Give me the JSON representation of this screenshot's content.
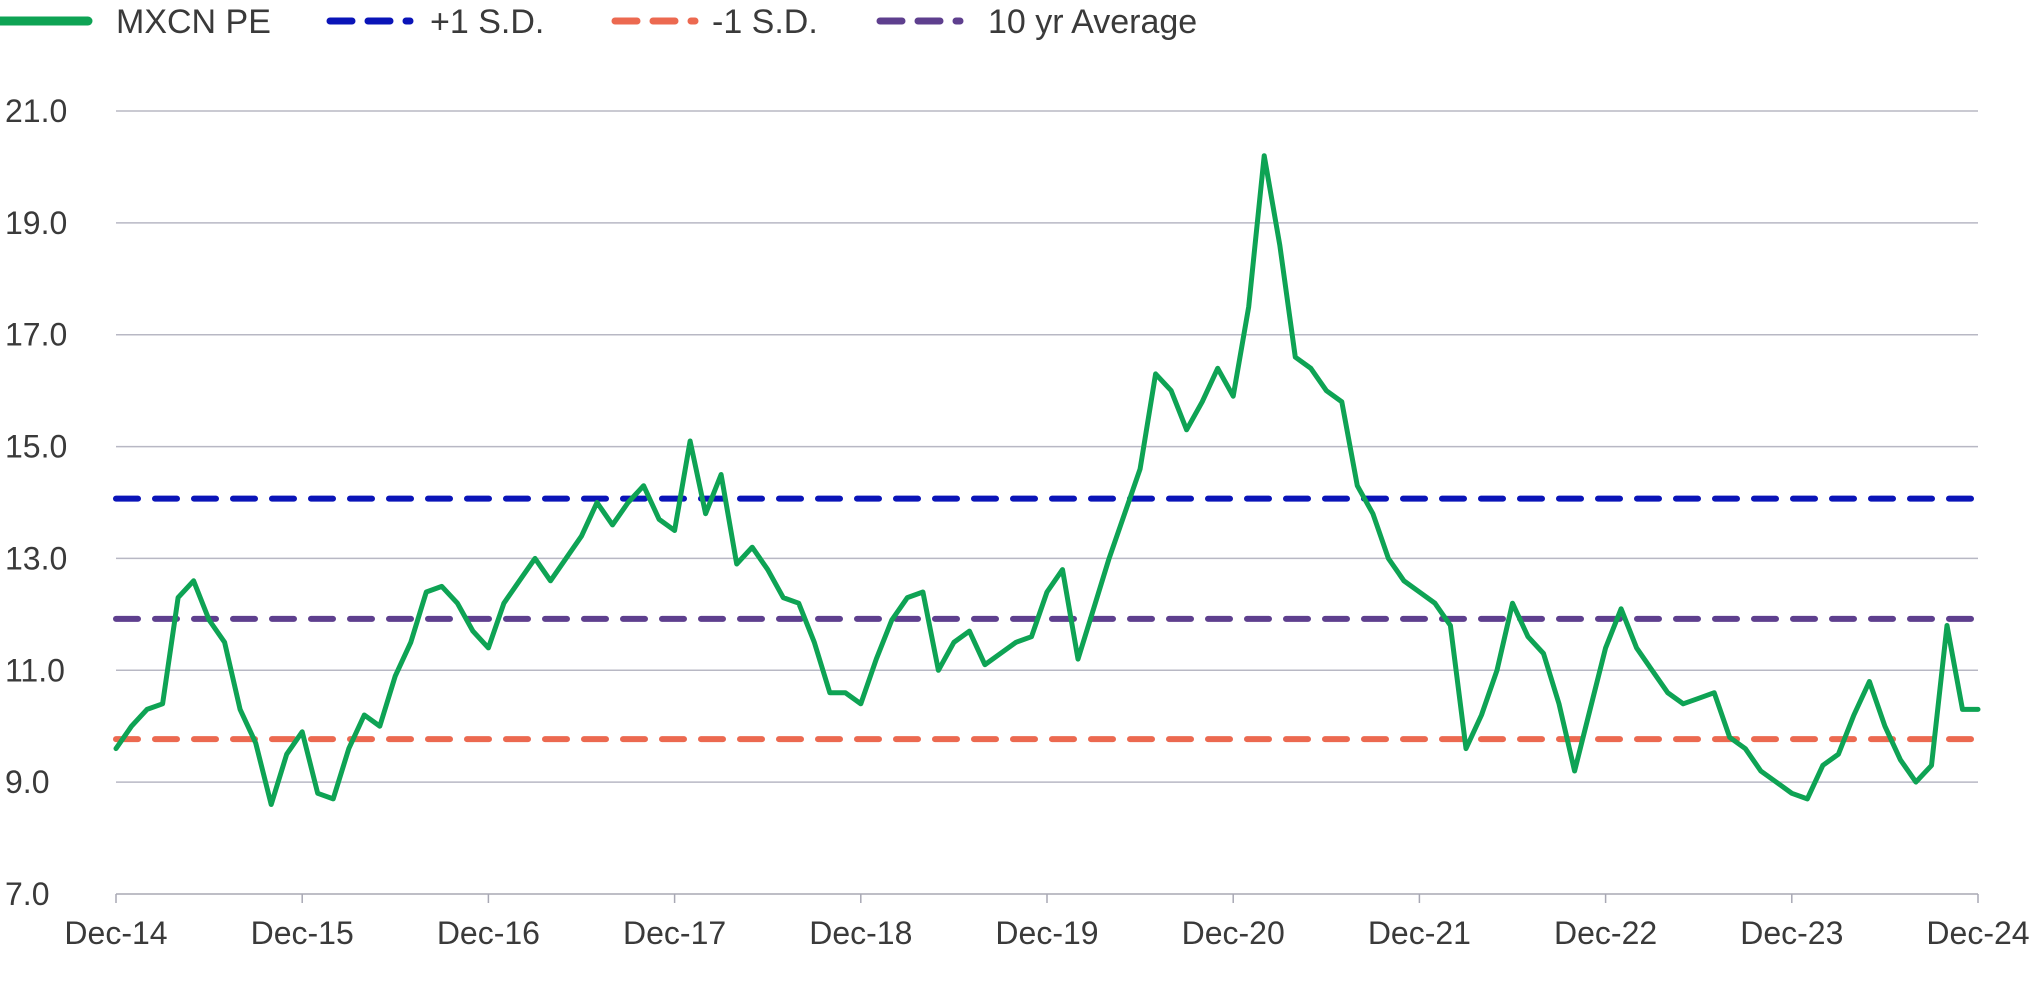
{
  "chart_data": {
    "type": "line",
    "title": "",
    "xlabel": "",
    "ylabel": "",
    "ylim": [
      7.0,
      21.0
    ],
    "y_ticks": [
      "7.0",
      "9.0",
      "11.0",
      "13.0",
      "15.0",
      "17.0",
      "19.0",
      "21.0"
    ],
    "x_ticks": [
      "Dec-14",
      "Dec-15",
      "Dec-16",
      "Dec-17",
      "Dec-18",
      "Dec-19",
      "Dec-20",
      "Dec-21",
      "Dec-22",
      "Dec-23",
      "Dec-24"
    ],
    "grid": "horizontal",
    "legend": [
      {
        "label": "MXCN PE",
        "color": "#0ea354",
        "style": "solid"
      },
      {
        "label": "+1 S.D.",
        "color": "#0a14b8",
        "style": "dashed"
      },
      {
        "label": "-1 S.D.",
        "color": "#ec6950",
        "style": "dashed"
      },
      {
        "label": "10 yr Average",
        "color": "#5e3f8e",
        "style": "dashed"
      }
    ],
    "series": [
      {
        "name": "MXCN PE",
        "color": "#0ea354",
        "points": [
          [
            "Dec-14",
            9.6
          ],
          [
            "Jan-15",
            10.0
          ],
          [
            "Feb-15",
            10.3
          ],
          [
            "Mar-15",
            10.4
          ],
          [
            "Apr-15",
            12.3
          ],
          [
            "May-15",
            12.6
          ],
          [
            "Jun-15",
            11.9
          ],
          [
            "Jul-15",
            11.5
          ],
          [
            "Aug-15",
            10.3
          ],
          [
            "Sep-15",
            9.7
          ],
          [
            "Oct-15",
            8.6
          ],
          [
            "Nov-15",
            9.5
          ],
          [
            "Dec-15",
            9.9
          ],
          [
            "Jan-16",
            8.8
          ],
          [
            "Feb-16",
            8.7
          ],
          [
            "Mar-16",
            9.6
          ],
          [
            "Apr-16",
            10.2
          ],
          [
            "May-16",
            10.0
          ],
          [
            "Jun-16",
            10.9
          ],
          [
            "Jul-16",
            11.5
          ],
          [
            "Aug-16",
            12.4
          ],
          [
            "Sep-16",
            12.5
          ],
          [
            "Oct-16",
            12.2
          ],
          [
            "Nov-16",
            11.7
          ],
          [
            "Dec-16",
            11.4
          ],
          [
            "Jan-17",
            12.2
          ],
          [
            "Feb-17",
            12.6
          ],
          [
            "Mar-17",
            13.0
          ],
          [
            "Apr-17",
            12.6
          ],
          [
            "May-17",
            13.0
          ],
          [
            "Jun-17",
            13.4
          ],
          [
            "Jul-17",
            14.0
          ],
          [
            "Aug-17",
            13.6
          ],
          [
            "Sep-17",
            14.0
          ],
          [
            "Oct-17",
            14.3
          ],
          [
            "Nov-17",
            13.7
          ],
          [
            "Dec-17",
            13.5
          ],
          [
            "Jan-18",
            15.1
          ],
          [
            "Feb-18",
            13.8
          ],
          [
            "Mar-18",
            14.5
          ],
          [
            "Apr-18",
            12.9
          ],
          [
            "May-18",
            13.2
          ],
          [
            "Jun-18",
            12.8
          ],
          [
            "Jul-18",
            12.3
          ],
          [
            "Aug-18",
            12.2
          ],
          [
            "Sep-18",
            11.5
          ],
          [
            "Oct-18",
            10.6
          ],
          [
            "Nov-18",
            10.6
          ],
          [
            "Dec-18",
            10.4
          ],
          [
            "Jan-19",
            11.2
          ],
          [
            "Feb-19",
            11.9
          ],
          [
            "Mar-19",
            12.3
          ],
          [
            "Apr-19",
            12.4
          ],
          [
            "May-19",
            11.0
          ],
          [
            "Jun-19",
            11.5
          ],
          [
            "Jul-19",
            11.7
          ],
          [
            "Aug-19",
            11.1
          ],
          [
            "Sep-19",
            11.3
          ],
          [
            "Oct-19",
            11.5
          ],
          [
            "Nov-19",
            11.6
          ],
          [
            "Dec-19",
            12.4
          ],
          [
            "Jan-20",
            12.8
          ],
          [
            "Feb-20",
            11.2
          ],
          [
            "Mar-20",
            12.1
          ],
          [
            "Apr-20",
            13.0
          ],
          [
            "May-20",
            13.8
          ],
          [
            "Jun-20",
            14.6
          ],
          [
            "Jul-20",
            16.3
          ],
          [
            "Aug-20",
            16.0
          ],
          [
            "Sep-20",
            15.3
          ],
          [
            "Oct-20",
            15.8
          ],
          [
            "Nov-20",
            16.4
          ],
          [
            "Dec-20",
            15.9
          ],
          [
            "Jan-21",
            17.5
          ],
          [
            "Feb-21",
            20.2
          ],
          [
            "Mar-21",
            18.6
          ],
          [
            "Apr-21",
            16.6
          ],
          [
            "May-21",
            16.4
          ],
          [
            "Jun-21",
            16.0
          ],
          [
            "Jul-21",
            15.8
          ],
          [
            "Aug-21",
            14.3
          ],
          [
            "Sep-21",
            13.8
          ],
          [
            "Oct-21",
            13.0
          ],
          [
            "Nov-21",
            12.6
          ],
          [
            "Dec-21",
            12.4
          ],
          [
            "Jan-22",
            12.2
          ],
          [
            "Feb-22",
            11.8
          ],
          [
            "Mar-22",
            9.6
          ],
          [
            "Apr-22",
            10.2
          ],
          [
            "May-22",
            11.0
          ],
          [
            "Jun-22",
            12.2
          ],
          [
            "Jul-22",
            11.6
          ],
          [
            "Aug-22",
            11.3
          ],
          [
            "Sep-22",
            10.4
          ],
          [
            "Oct-22",
            9.2
          ],
          [
            "Nov-22",
            10.3
          ],
          [
            "Dec-22",
            11.4
          ],
          [
            "Jan-23",
            12.1
          ],
          [
            "Feb-23",
            11.4
          ],
          [
            "Mar-23",
            11.0
          ],
          [
            "Apr-23",
            10.6
          ],
          [
            "May-23",
            10.4
          ],
          [
            "Jun-23",
            10.5
          ],
          [
            "Jul-23",
            10.6
          ],
          [
            "Aug-23",
            9.8
          ],
          [
            "Sep-23",
            9.6
          ],
          [
            "Oct-23",
            9.2
          ],
          [
            "Nov-23",
            9.0
          ],
          [
            "Dec-23",
            8.8
          ],
          [
            "Jan-24",
            8.7
          ],
          [
            "Feb-24",
            9.3
          ],
          [
            "Mar-24",
            9.5
          ],
          [
            "Apr-24",
            10.2
          ],
          [
            "May-24",
            10.8
          ],
          [
            "Jun-24",
            10.0
          ],
          [
            "Jul-24",
            9.4
          ],
          [
            "Aug-24",
            9.0
          ],
          [
            "Sep-24",
            9.3
          ],
          [
            "Oct-24",
            11.8
          ],
          [
            "Nov-24",
            10.3
          ],
          [
            "Dec-24",
            10.3
          ]
        ]
      },
      {
        "name": "+1 S.D.",
        "color": "#0a14b8",
        "style": "dashed",
        "value": 14.07
      },
      {
        "name": "-1 S.D.",
        "color": "#ec6950",
        "style": "dashed",
        "value": 9.77
      },
      {
        "name": "10 yr Average",
        "color": "#5e3f8e",
        "style": "dashed",
        "value": 11.92
      }
    ]
  }
}
